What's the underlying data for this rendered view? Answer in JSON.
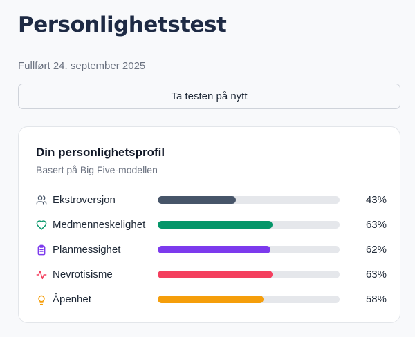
{
  "header": {
    "title": "Personlighetstest",
    "completed": "Fullført 24. september 2025",
    "retake_label": "Ta testen på nytt"
  },
  "profile": {
    "title": "Din personlighetsprofil",
    "subtitle": "Basert på Big Five-modellen",
    "track_color": "#e5e7eb",
    "traits": [
      {
        "label": "Ekstroversjon",
        "value": 43,
        "value_text": "43%",
        "color": "#475569",
        "icon": "users-icon"
      },
      {
        "label": "Medmenneskelighet",
        "value": 63,
        "value_text": "63%",
        "color": "#059669",
        "icon": "heart-icon"
      },
      {
        "label": "Planmessighet",
        "value": 62,
        "value_text": "62%",
        "color": "#7c3aed",
        "icon": "clipboard-icon"
      },
      {
        "label": "Nevrotisisme",
        "value": 63,
        "value_text": "63%",
        "color": "#f43f5e",
        "icon": "activity-icon"
      },
      {
        "label": "Åpenhet",
        "value": 58,
        "value_text": "58%",
        "color": "#f59e0b",
        "icon": "lightbulb-icon"
      }
    ]
  }
}
